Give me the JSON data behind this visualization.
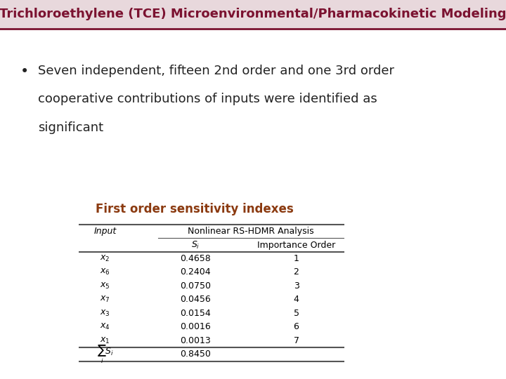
{
  "title": "Trichloroethylene (TCE) Microenvironmental/Pharmacokinetic Modeling",
  "title_color": "#7B1230",
  "title_bg_color": "#e8d8dc",
  "title_fontsize": 13,
  "bullet_text_line1": "Seven independent, fifteen 2nd order and one 3rd order",
  "bullet_text_line2": "cooperative contributions of inputs were identified as",
  "bullet_text_line3": "significant",
  "bullet_fontsize": 13,
  "bullet_color": "#222222",
  "table_title": "First order sensitivity indexes",
  "table_title_color": "#8B3A10",
  "table_title_fontsize": 12,
  "header_row1_col1": "Input",
  "header_row1_col2": "Nonlinear RS-HDMR Analysis",
  "header_row2_col1": "Si",
  "header_row2_col2": "Importance Order",
  "rows": [
    [
      "x2",
      "0.4658",
      "1"
    ],
    [
      "x6",
      "0.2404",
      "2"
    ],
    [
      "x5",
      "0.0750",
      "3"
    ],
    [
      "x7",
      "0.0456",
      "4"
    ],
    [
      "x3",
      "0.0154",
      "5"
    ],
    [
      "x4",
      "0.0016",
      "6"
    ],
    [
      "x1",
      "0.0013",
      "7"
    ]
  ],
  "sum_label": "sum_Si",
  "sum_value": "0.8450",
  "bg_color": "#ffffff",
  "separator_color": "#7B1230",
  "line_color": "#555555"
}
